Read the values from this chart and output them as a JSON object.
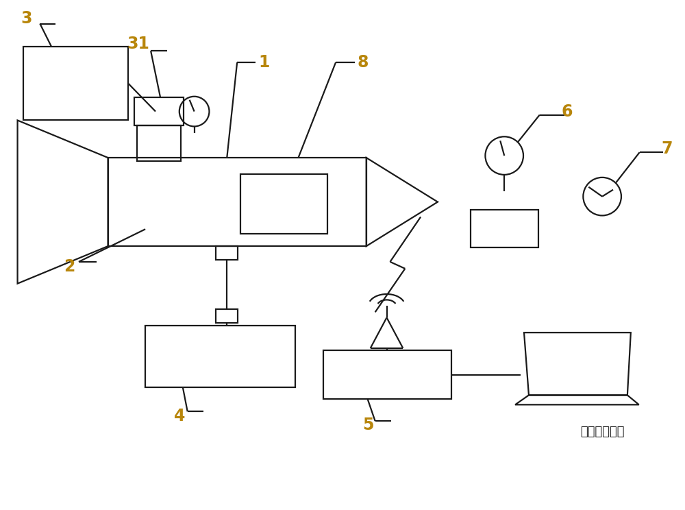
{
  "bg_color": "#ffffff",
  "line_color": "#1a1a1a",
  "label_color": "#b8860b",
  "fig_width": 10.0,
  "fig_height": 7.44,
  "bottom_text": "压力数据解析"
}
